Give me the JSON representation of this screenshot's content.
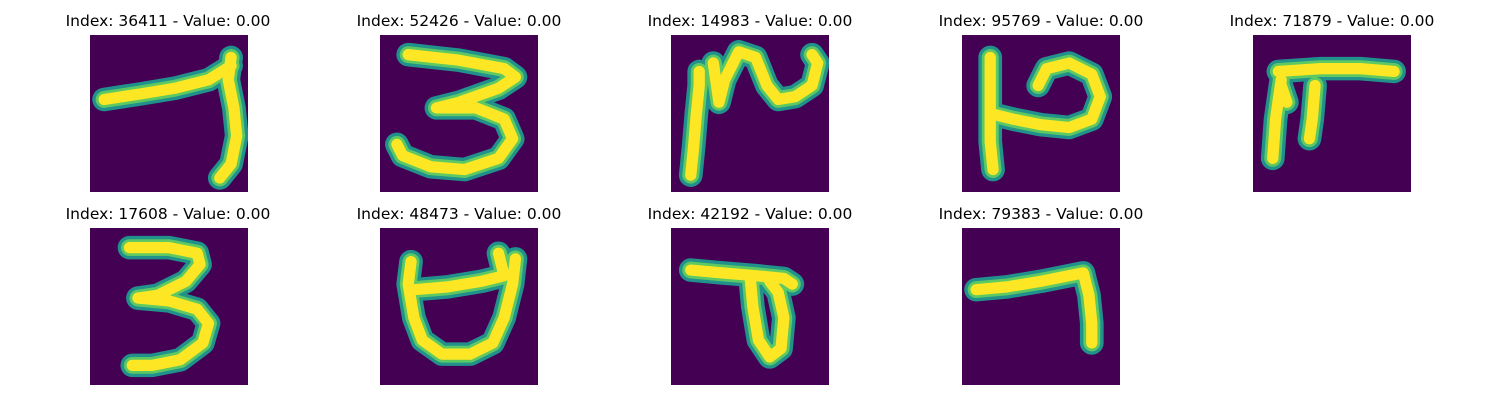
{
  "colors": {
    "background": "#440154",
    "stroke_edge": "#21918c",
    "stroke_mid": "#5ec962",
    "stroke_core": "#fde725"
  },
  "panels": [
    {
      "index": "36411",
      "value": "0.00",
      "title": "Index: 36411 - Value: 0.00",
      "glyph": "seven-slanted"
    },
    {
      "index": "52426",
      "value": "0.00",
      "title": "Index: 52426 - Value: 0.00",
      "glyph": "three-wide"
    },
    {
      "index": "14983",
      "value": "0.00",
      "title": "Index: 14983 - Value: 0.00",
      "glyph": "squiggle-script"
    },
    {
      "index": "95769",
      "value": "0.00",
      "title": "Index: 95769 - Value: 0.00",
      "glyph": "h-loop"
    },
    {
      "index": "71879",
      "value": "0.00",
      "title": "Index: 71879 - Value: 0.00",
      "glyph": "pi-shape"
    },
    {
      "index": "17608",
      "value": "0.00",
      "title": "Index: 17608 - Value: 0.00",
      "glyph": "three-bold"
    },
    {
      "index": "48473",
      "value": "0.00",
      "title": "Index: 48473 - Value: 0.00",
      "glyph": "cup-shape"
    },
    {
      "index": "42192",
      "value": "0.00",
      "title": "Index: 42192 - Value: 0.00",
      "glyph": "t-loop"
    },
    {
      "index": "79383",
      "value": "0.00",
      "title": "Index: 79383 - Value: 0.00",
      "glyph": "seven-flat"
    }
  ]
}
